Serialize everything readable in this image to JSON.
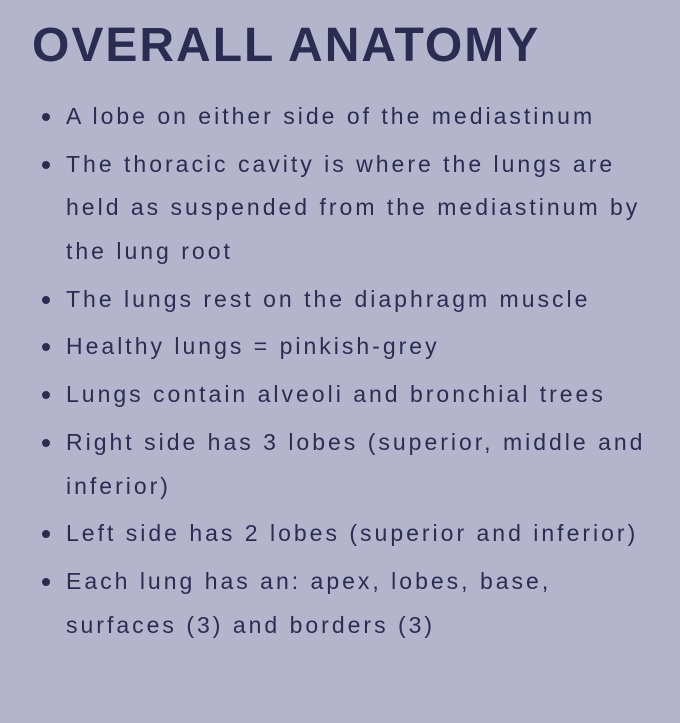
{
  "title": "OVERALL ANATOMY",
  "title_fontsize": 48,
  "title_font": "Arial Black",
  "body_font": "Comic Sans MS",
  "body_fontsize": 23,
  "letter_spacing": 3,
  "line_height": 1.9,
  "background_color": "#b4b5cc",
  "text_color": "#2a2c52",
  "bullet_color": "#2a2c52",
  "bullet_size": 8,
  "bullets": [
    "A lobe on either side of the mediastinum",
    "The thoracic cavity is where the lungs are held as suspended from the mediastinum by the lung root",
    "The lungs rest on the diaphragm muscle",
    "Healthy lungs = pinkish-grey",
    "Lungs contain alveoli and bronchial trees",
    "Right side has 3 lobes (superior, middle and inferior)",
    "Left side has 2 lobes (superior and inferior)",
    "Each lung has an: apex, lobes, base, surfaces (3) and borders (3)"
  ]
}
